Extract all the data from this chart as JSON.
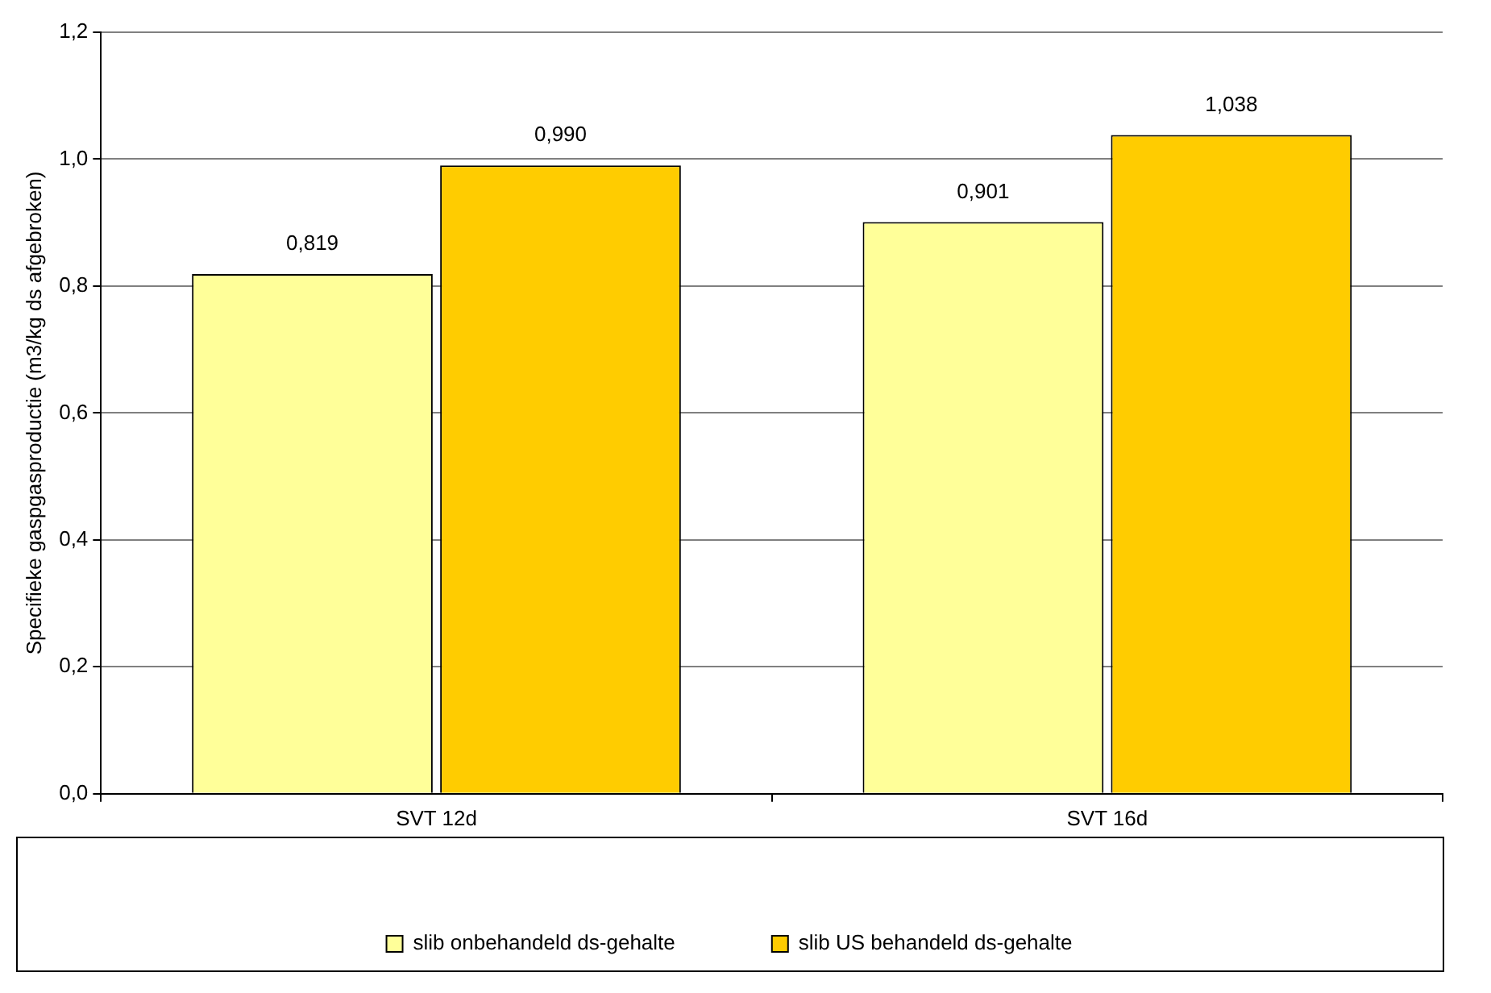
{
  "chart_data": {
    "type": "bar",
    "ylabel": "Specifieke gaspgasproductie (m3/kg ds afgebroken)",
    "categories": [
      "SVT 12d",
      "SVT 16d"
    ],
    "series": [
      {
        "name": "slib onbehandeld ds-gehalte",
        "color": "#ffff99",
        "values": [
          0.819,
          0.901
        ],
        "value_labels": [
          "0,819",
          "0,901"
        ]
      },
      {
        "name": "slib US behandeld ds-gehalte",
        "color": "#ffcc00",
        "values": [
          0.99,
          1.038
        ],
        "value_labels": [
          "0,990",
          "1,038"
        ]
      }
    ],
    "ylim": [
      0,
      1.2
    ],
    "yticks": [
      {
        "value": 0,
        "label": "0,0"
      },
      {
        "value": 0.2,
        "label": "0,2"
      },
      {
        "value": 0.4,
        "label": "0,4"
      },
      {
        "value": 0.6,
        "label": "0,6"
      },
      {
        "value": 0.8,
        "label": "0,8"
      },
      {
        "value": 1,
        "label": "1,0"
      },
      {
        "value": 1.2,
        "label": "1,2"
      }
    ],
    "grid": "y",
    "legend": "bottom"
  }
}
